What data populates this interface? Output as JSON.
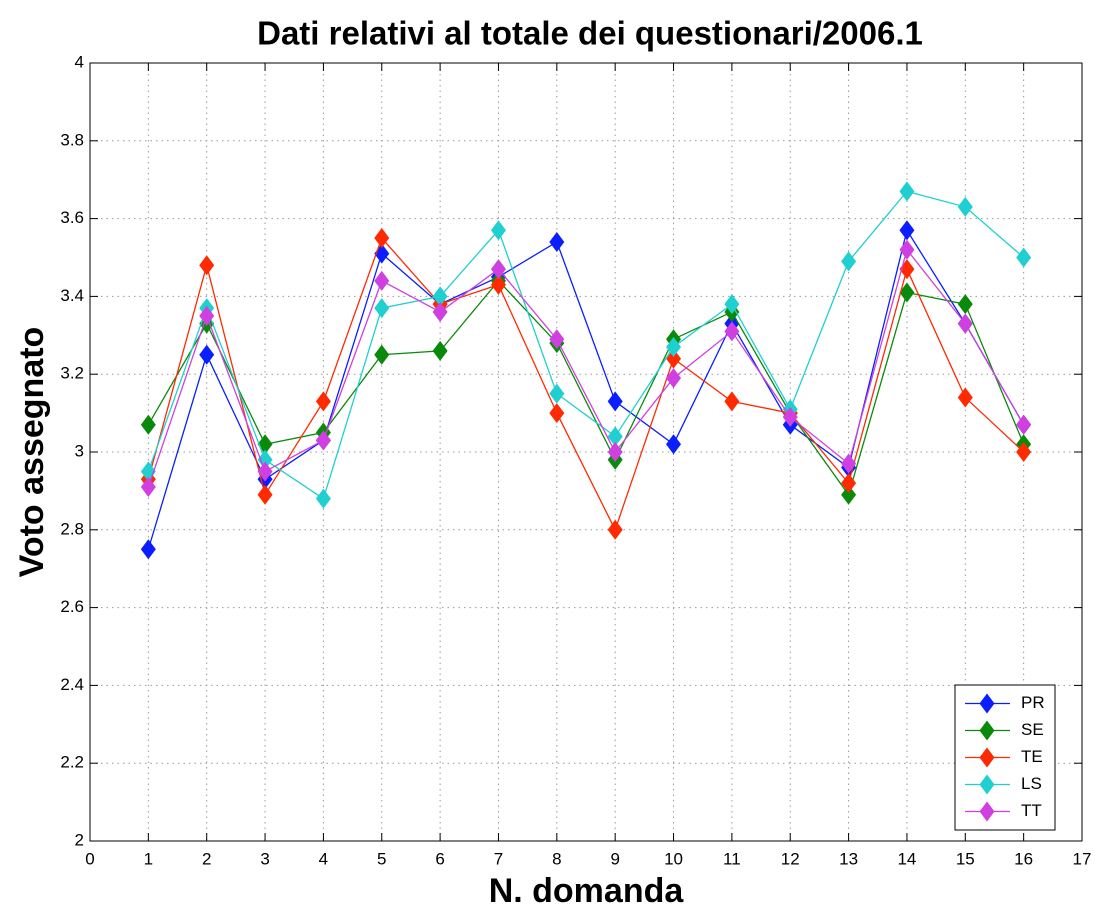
{
  "chart_data": {
    "type": "line",
    "title": "Dati relativi al totale dei questionari/2006.1",
    "x_label": "N. domanda",
    "y_label": "Voto assegnato",
    "x": [
      1,
      2,
      3,
      4,
      5,
      6,
      7,
      8,
      9,
      10,
      11,
      12,
      13,
      14,
      15,
      16
    ],
    "series": [
      {
        "name": "PR",
        "color": "#0a1eff",
        "values": [
          2.75,
          3.25,
          2.93,
          3.03,
          3.51,
          3.38,
          3.45,
          3.54,
          3.13,
          3.02,
          3.33,
          3.07,
          2.96,
          3.57,
          3.33,
          3.07
        ]
      },
      {
        "name": "SE",
        "color": "#0a8a0a",
        "values": [
          3.07,
          3.33,
          3.02,
          3.05,
          3.25,
          3.26,
          3.44,
          3.28,
          2.98,
          3.29,
          3.36,
          3.1,
          2.89,
          3.41,
          3.38,
          3.02
        ]
      },
      {
        "name": "TE",
        "color": "#ff2a00",
        "values": [
          2.93,
          3.48,
          2.89,
          3.13,
          3.55,
          3.38,
          3.43,
          3.1,
          2.8,
          3.24,
          3.13,
          3.1,
          2.92,
          3.47,
          3.14,
          3.0
        ]
      },
      {
        "name": "LS",
        "color": "#20d0d0",
        "values": [
          2.95,
          3.37,
          2.98,
          2.88,
          3.37,
          3.4,
          3.57,
          3.15,
          3.04,
          3.27,
          3.38,
          3.11,
          3.49,
          3.67,
          3.63,
          3.5
        ]
      },
      {
        "name": "TT",
        "color": "#d040e0",
        "values": [
          2.91,
          3.35,
          2.95,
          3.03,
          3.44,
          3.36,
          3.47,
          3.29,
          3.0,
          3.19,
          3.31,
          3.09,
          2.97,
          3.52,
          3.33,
          3.07
        ]
      }
    ],
    "xlim": [
      0,
      17
    ],
    "xticks": [
      0,
      1,
      2,
      3,
      4,
      5,
      6,
      7,
      8,
      9,
      10,
      11,
      12,
      13,
      14,
      15,
      16,
      17
    ],
    "ylim": [
      2,
      4
    ],
    "yticks": [
      2,
      2.2,
      2.4,
      2.6,
      2.8,
      3,
      3.2,
      3.4,
      3.6,
      3.8,
      4
    ],
    "grid": true,
    "legend": "bottom-right"
  }
}
